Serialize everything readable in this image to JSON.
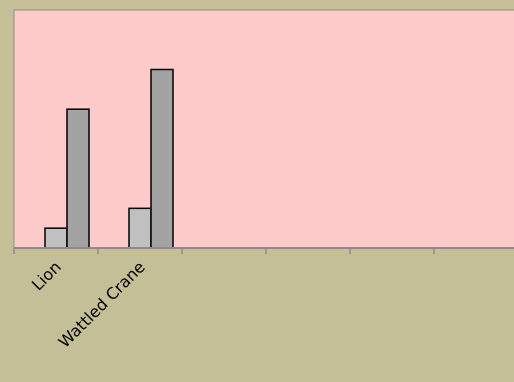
{
  "colors": {
    "page_background": "#c5bf97",
    "plot_background": "#ffcaca",
    "axis": "#8c8c8c",
    "bar_series_1": "#c0c0c0",
    "bar_series_2": "#a3a3a3",
    "bar_outline": "#000000"
  },
  "chart_data": {
    "type": "bar",
    "title": "",
    "xlabel": "",
    "ylabel": "",
    "categories": [
      "Lion",
      "Wattled Crane"
    ],
    "series": [
      {
        "values": [
          1,
          2
        ]
      },
      {
        "values": [
          7,
          9
        ]
      }
    ],
    "ylim": [
      0,
      12
    ],
    "category_slots": 6,
    "y_tick_labels_visible": false,
    "grid": false,
    "legend": "none",
    "x_tick_label_rotation_deg": -45
  }
}
